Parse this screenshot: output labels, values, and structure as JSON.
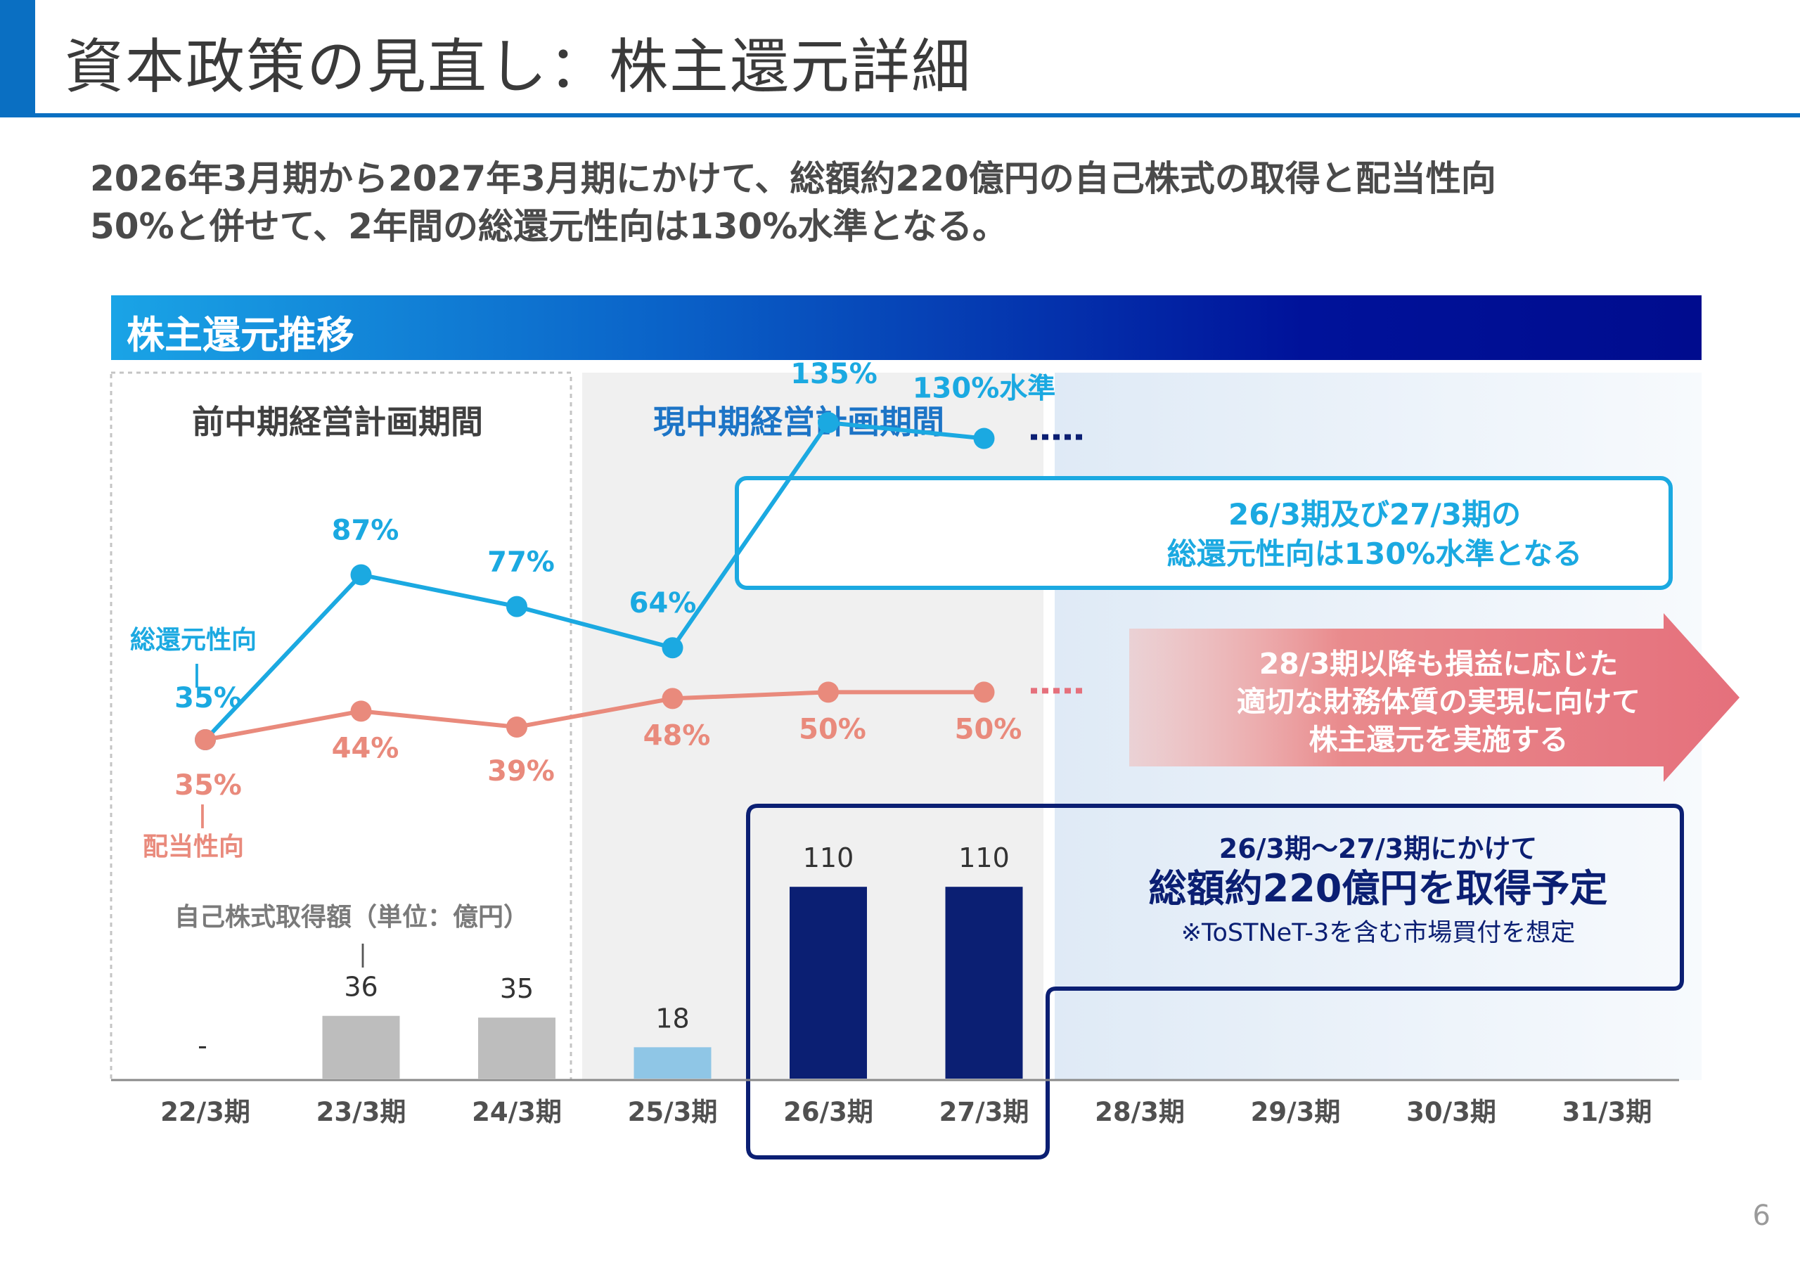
{
  "page": {
    "title": "資本政策の見直し：株主還元詳細",
    "subtitle_line1": "2026年3月期から2027年3月期にかけて、総額約220億円の自己株式の取得と配当性向",
    "subtitle_line2": "50%と併せて、2年間の総還元性向は130%水準となる。",
    "section_title": "株主還元推移",
    "page_number": "6"
  },
  "chart_data": {
    "type": "line+bar",
    "categories": [
      "22/3期",
      "23/3期",
      "24/3期",
      "25/3期",
      "26/3期",
      "27/3期",
      "28/3期",
      "29/3期",
      "30/3期",
      "31/3期"
    ],
    "period_labels": {
      "previous": "前中期経営計画期間",
      "current": "現中期経営計画期間"
    },
    "total_return": {
      "name": "総還元性向",
      "label_values": [
        "35%",
        "87%",
        "77%",
        "64%",
        "135%",
        "130%水準"
      ],
      "values": [
        35,
        87,
        77,
        64,
        135,
        130
      ],
      "color": "#1ba9e1"
    },
    "payout": {
      "name": "配当性向",
      "label_values": [
        "35%",
        "44%",
        "39%",
        "48%",
        "50%",
        "50%"
      ],
      "values": [
        35,
        44,
        39,
        48,
        50,
        50
      ],
      "color": "#e98a7c"
    },
    "buyback": {
      "name": "自己株式取得額（単位：億円）",
      "label_values": [
        "-",
        "36",
        "35",
        "18",
        "110",
        "110"
      ],
      "values": [
        0,
        36,
        35,
        18,
        110,
        110
      ],
      "colors": [
        "#bdbdbd",
        "#bdbdbd",
        "#bdbdbd",
        "#8fc6e6",
        "#0b1f73",
        "#0b1f73"
      ]
    },
    "callout_return": {
      "line1": "26/3期及び27/3期の",
      "line2": "総還元性向は130%水準となる"
    },
    "arrow_text": {
      "line1": "28/3期以降も損益に応じた",
      "line2": "適切な財務体質の実現に向けて",
      "line3": "株主還元を実施する"
    },
    "callout_buyback": {
      "line1": "26/3期～27/3期にかけて",
      "line2": "総額約220億円を取得予定",
      "line3": "※ToSTNeT-3を含む市場買付を想定"
    },
    "total_label_line1": "総還元性向",
    "total_label_line2": "35%",
    "payout_label_line1": "35%",
    "payout_label_line2": "配当性向",
    "separator": "|"
  }
}
